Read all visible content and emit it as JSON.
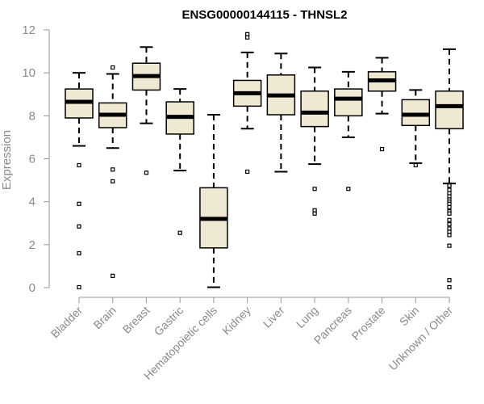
{
  "chart_data": {
    "type": "boxplot",
    "title": "ENSG00000144115 - THNSL2",
    "xlabel": "",
    "ylabel": "Expression",
    "ylim": [
      0,
      12
    ],
    "yticks": [
      0,
      2,
      4,
      6,
      8,
      10,
      12
    ],
    "box_fill": "#efe8d2",
    "box_stroke": "#000000",
    "categories": [
      "Bladder",
      "Brain",
      "Breast",
      "Gastric",
      "Hematopoietic cells",
      "Kidney",
      "Liver",
      "Lung",
      "Pancreas",
      "Prostate",
      "Skin",
      "Unknown / Other"
    ],
    "boxes": [
      {
        "category": "Bladder",
        "whisker_low": 6.6,
        "q1": 7.9,
        "median": 8.65,
        "q3": 9.25,
        "whisker_high": 10.0,
        "outliers": [
          5.7,
          3.9,
          2.85,
          1.6,
          0.02
        ]
      },
      {
        "category": "Brain",
        "whisker_low": 6.5,
        "q1": 7.45,
        "median": 8.05,
        "q3": 8.6,
        "whisker_high": 9.95,
        "outliers": [
          10.25,
          5.5,
          4.95,
          0.55
        ]
      },
      {
        "category": "Breast",
        "whisker_low": 7.65,
        "q1": 9.2,
        "median": 9.85,
        "q3": 10.45,
        "whisker_high": 11.2,
        "outliers": [
          5.35
        ]
      },
      {
        "category": "Gastric",
        "whisker_low": 5.45,
        "q1": 7.15,
        "median": 7.95,
        "q3": 8.65,
        "whisker_high": 9.25,
        "outliers": [
          2.55
        ]
      },
      {
        "category": "Hematopoietic cells",
        "whisker_low": 0.02,
        "q1": 1.85,
        "median": 3.2,
        "q3": 4.65,
        "whisker_high": 8.05,
        "outliers": []
      },
      {
        "category": "Kidney",
        "whisker_low": 7.4,
        "q1": 8.45,
        "median": 9.05,
        "q3": 9.65,
        "whisker_high": 10.95,
        "outliers": [
          11.8,
          11.65,
          5.4
        ]
      },
      {
        "category": "Liver",
        "whisker_low": 5.4,
        "q1": 8.05,
        "median": 8.95,
        "q3": 9.9,
        "whisker_high": 10.9,
        "outliers": []
      },
      {
        "category": "Lung",
        "whisker_low": 5.75,
        "q1": 7.5,
        "median": 8.15,
        "q3": 9.15,
        "whisker_high": 10.25,
        "outliers": [
          4.6,
          3.6,
          3.45
        ]
      },
      {
        "category": "Pancreas",
        "whisker_low": 7.0,
        "q1": 8.0,
        "median": 8.8,
        "q3": 9.25,
        "whisker_high": 10.05,
        "outliers": [
          4.6
        ]
      },
      {
        "category": "Prostate",
        "whisker_low": 8.1,
        "q1": 9.15,
        "median": 9.65,
        "q3": 10.05,
        "whisker_high": 10.7,
        "outliers": [
          6.45
        ]
      },
      {
        "category": "Skin",
        "whisker_low": 5.8,
        "q1": 7.55,
        "median": 8.05,
        "q3": 8.75,
        "whisker_high": 9.2,
        "outliers": [
          5.7
        ]
      },
      {
        "category": "Unknown / Other",
        "whisker_low": 4.85,
        "q1": 7.4,
        "median": 8.45,
        "q3": 9.15,
        "whisker_high": 11.1,
        "outliers": [
          4.8,
          4.75,
          4.55,
          4.4,
          4.25,
          4.1,
          4.0,
          3.9,
          3.75,
          3.55,
          3.45,
          3.15,
          2.95,
          2.75,
          2.6,
          2.45,
          1.95,
          0.35,
          0.02
        ]
      }
    ]
  }
}
